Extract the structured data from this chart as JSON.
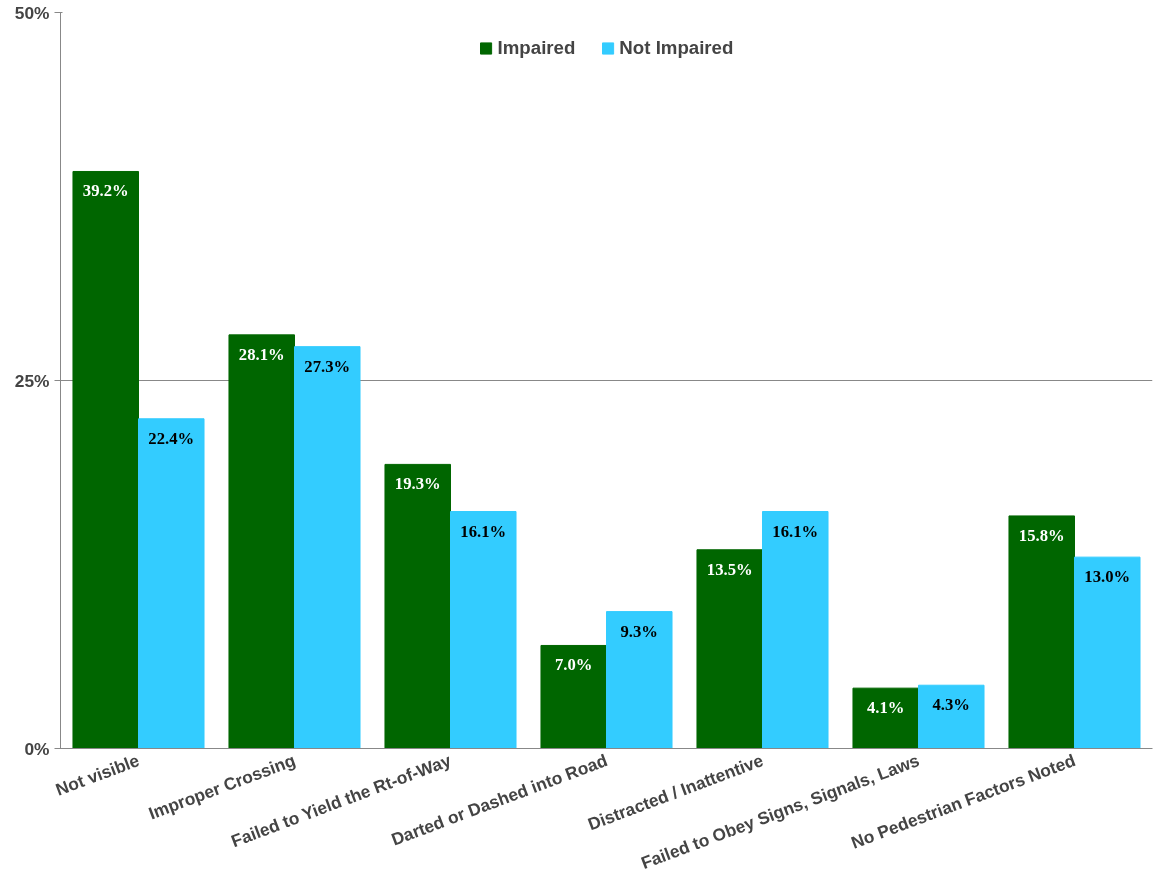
{
  "chart_data": {
    "type": "bar",
    "categories": [
      "Not visible",
      "Improper Crossing",
      "Failed to Yield the Rt-of-Way",
      "Darted or Dashed into Road",
      "Distracted / Inattentive",
      "Failed to Obey Signs, Signals, Laws",
      "No Pedestrian Factors Noted"
    ],
    "series": [
      {
        "name": "Impaired",
        "color": "#006600",
        "values": [
          39.2,
          28.1,
          19.3,
          7.0,
          13.5,
          4.1,
          15.8
        ],
        "value_labels": [
          "39.2%",
          "28.1%",
          "19.3%",
          "7.0%",
          "13.5%",
          "4.1%",
          "15.8%"
        ]
      },
      {
        "name": "Not Impaired",
        "color": "#33ccff",
        "values": [
          22.4,
          27.3,
          16.1,
          9.3,
          16.1,
          4.3,
          13.0
        ],
        "value_labels": [
          "22.4%",
          "27.3%",
          "16.1%",
          "9.3%",
          "16.1%",
          "4.3%",
          "13.0%"
        ]
      }
    ],
    "ylim": [
      0,
      50
    ],
    "yticks": [
      {
        "value": 0,
        "label": "0%"
      },
      {
        "value": 25,
        "label": "25%"
      },
      {
        "value": 50,
        "label": "50%"
      }
    ],
    "grid": "y",
    "legend": "top"
  }
}
